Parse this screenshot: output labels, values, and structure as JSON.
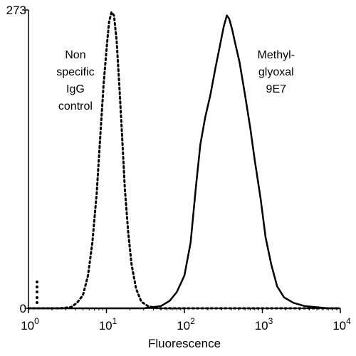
{
  "chart_data": {
    "type": "line",
    "xlabel": "Fluorescence",
    "ylabel": "",
    "x_scale": "log",
    "xlim": [
      1,
      10000
    ],
    "ylim": [
      0,
      273
    ],
    "x_ticks": [
      {
        "base": "10",
        "exp": "0",
        "value": 1
      },
      {
        "base": "10",
        "exp": "1",
        "value": 10
      },
      {
        "base": "10",
        "exp": "2",
        "value": 100
      },
      {
        "base": "10",
        "exp": "3",
        "value": 1000
      },
      {
        "base": "10",
        "exp": "4",
        "value": 10000
      }
    ],
    "y_ticks": [
      {
        "label": "0",
        "value": 0
      },
      {
        "label": "273",
        "value": 273
      }
    ],
    "grid": false,
    "series": [
      {
        "style": "dotted",
        "color": "#000000",
        "points": [
          [
            1.0,
            0
          ],
          [
            2.5,
            0
          ],
          [
            3.5,
            1
          ],
          [
            4.2,
            5
          ],
          [
            5.0,
            12
          ],
          [
            5.8,
            30
          ],
          [
            6.6,
            60
          ],
          [
            7.5,
            105
          ],
          [
            8.3,
            155
          ],
          [
            9.2,
            205
          ],
          [
            10.1,
            240
          ],
          [
            10.8,
            262
          ],
          [
            11.6,
            271
          ],
          [
            12.5,
            268
          ],
          [
            13.5,
            245
          ],
          [
            14.6,
            205
          ],
          [
            15.8,
            160
          ],
          [
            17.2,
            110
          ],
          [
            19.0,
            70
          ],
          [
            21.0,
            40
          ],
          [
            24.0,
            18
          ],
          [
            28.0,
            6
          ],
          [
            34.0,
            2
          ],
          [
            45.0,
            0
          ],
          [
            10000,
            0
          ]
        ]
      },
      {
        "style": "solid",
        "color": "#000000",
        "points": [
          [
            1.0,
            0
          ],
          [
            30.0,
            0
          ],
          [
            50.0,
            2
          ],
          [
            65.0,
            7
          ],
          [
            80.0,
            15
          ],
          [
            100.0,
            30
          ],
          [
            120.0,
            60
          ],
          [
            140.0,
            110
          ],
          [
            160.0,
            150
          ],
          [
            185.0,
            175
          ],
          [
            215.0,
            195
          ],
          [
            250.0,
            220
          ],
          [
            285.0,
            240
          ],
          [
            320.0,
            258
          ],
          [
            350.0,
            268
          ],
          [
            375.0,
            265
          ],
          [
            410.0,
            255
          ],
          [
            450.0,
            242
          ],
          [
            510.0,
            225
          ],
          [
            600.0,
            195
          ],
          [
            700.0,
            165
          ],
          [
            800.0,
            135
          ],
          [
            950.0,
            100
          ],
          [
            1100.0,
            65
          ],
          [
            1300.0,
            40
          ],
          [
            1550.0,
            20
          ],
          [
            1900.0,
            10
          ],
          [
            2500.0,
            5
          ],
          [
            3500.0,
            2
          ],
          [
            5000.0,
            1
          ],
          [
            7000.0,
            0
          ],
          [
            10000,
            0
          ]
        ]
      }
    ],
    "annotations": [
      {
        "lines": [
          "Non",
          "specific",
          "IgG",
          "control"
        ],
        "anchor_x": 4.0,
        "anchor_y": 245
      },
      {
        "lines": [
          "Methyl-",
          "glyoxal",
          "9E7"
        ],
        "anchor_x": 1500,
        "anchor_y": 245
      }
    ]
  }
}
